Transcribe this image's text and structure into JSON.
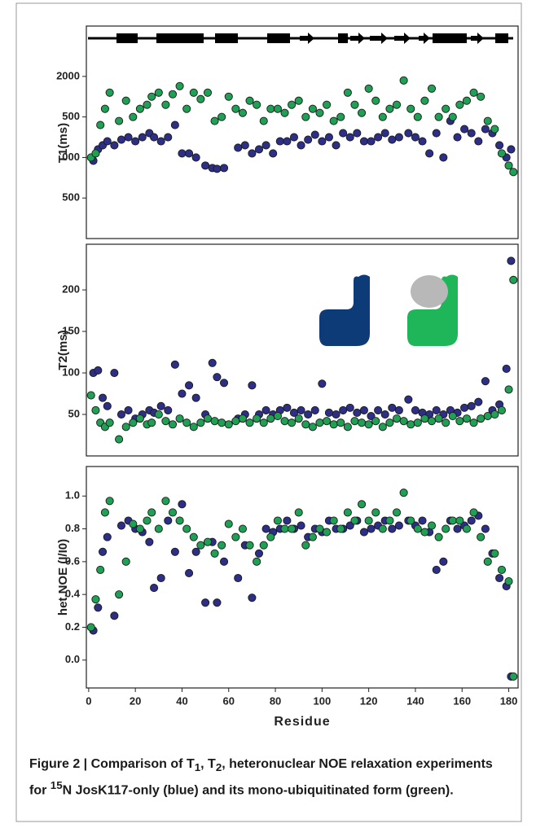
{
  "chart_data": [
    {
      "type": "scatter",
      "ylabel": "T1(ms)",
      "xlim": [
        -1,
        184
      ],
      "ylim": [
        0,
        2360
      ],
      "yticks": [
        2000,
        {
          "value": 1500,
          "label": "500"
        },
        {
          "value": 1000,
          "label": "000"
        },
        500
      ],
      "series": [
        {
          "color": "#2d2f86",
          "x": [
            2,
            4,
            6,
            8,
            11,
            14,
            17,
            20,
            23,
            26,
            28,
            31,
            34,
            37,
            40,
            43,
            46,
            50,
            53,
            55,
            58,
            64,
            67,
            70,
            73,
            76,
            79,
            82,
            85,
            88,
            91,
            94,
            97,
            100,
            103,
            106,
            109,
            112,
            115,
            118,
            121,
            124,
            127,
            130,
            133,
            137,
            140,
            143,
            146,
            149,
            152,
            155,
            158,
            161,
            164,
            167,
            170,
            173,
            176,
            179,
            181
          ],
          "values": [
            960,
            1100,
            1150,
            1200,
            1150,
            1220,
            1250,
            1200,
            1250,
            1300,
            1250,
            1200,
            1250,
            1400,
            1050,
            1050,
            1000,
            900,
            870,
            860,
            870,
            1120,
            1150,
            1050,
            1100,
            1150,
            1050,
            1200,
            1200,
            1250,
            1150,
            1220,
            1280,
            1200,
            1250,
            1150,
            1300,
            1250,
            1300,
            1200,
            1200,
            1250,
            1300,
            1220,
            1250,
            1300,
            1250,
            1200,
            1050,
            1300,
            1000,
            1450,
            1250,
            1350,
            1300,
            1200,
            1350,
            1300,
            1150,
            1000,
            1100
          ]
        },
        {
          "color": "#1fa055",
          "x": [
            1,
            3,
            5,
            7,
            9,
            13,
            16,
            19,
            22,
            25,
            27,
            30,
            33,
            36,
            39,
            42,
            45,
            48,
            51,
            54,
            57,
            60,
            63,
            66,
            69,
            72,
            75,
            78,
            81,
            84,
            87,
            90,
            93,
            96,
            99,
            102,
            105,
            108,
            111,
            114,
            117,
            120,
            123,
            126,
            129,
            132,
            135,
            138,
            141,
            144,
            147,
            150,
            153,
            156,
            159,
            162,
            165,
            168,
            171,
            174,
            177,
            180,
            182
          ],
          "values": [
            1000,
            1050,
            1400,
            1600,
            1800,
            1450,
            1700,
            1500,
            1600,
            1650,
            1750,
            1800,
            1650,
            1780,
            1880,
            1600,
            1800,
            1720,
            1800,
            1450,
            1500,
            1750,
            1600,
            1550,
            1700,
            1650,
            1450,
            1600,
            1600,
            1550,
            1650,
            1700,
            1500,
            1600,
            1550,
            1650,
            1450,
            1500,
            1800,
            1650,
            1550,
            1850,
            1700,
            1500,
            1600,
            1650,
            1950,
            1600,
            1500,
            1700,
            1850,
            1500,
            1600,
            1500,
            1650,
            1700,
            1800,
            1750,
            1450,
            1350,
            1050,
            900,
            820
          ]
        }
      ]
    },
    {
      "type": "scatter",
      "ylabel": "T2(ms)",
      "xlim": [
        -1,
        184
      ],
      "ylim": [
        0,
        255
      ],
      "yticks": [
        50,
        100,
        150,
        200
      ],
      "series": [
        {
          "color": "#2d2f86",
          "x": [
            2,
            4,
            6,
            8,
            11,
            14,
            17,
            20,
            23,
            26,
            28,
            31,
            34,
            37,
            40,
            43,
            46,
            50,
            53,
            55,
            58,
            64,
            67,
            70,
            73,
            76,
            79,
            82,
            85,
            88,
            91,
            94,
            97,
            100,
            103,
            106,
            109,
            112,
            115,
            118,
            121,
            124,
            127,
            130,
            133,
            137,
            140,
            143,
            146,
            149,
            152,
            155,
            158,
            161,
            164,
            167,
            170,
            173,
            176,
            179,
            181
          ],
          "values": [
            100,
            103,
            70,
            60,
            100,
            50,
            55,
            45,
            50,
            55,
            52,
            60,
            55,
            110,
            75,
            85,
            70,
            50,
            112,
            95,
            88,
            45,
            50,
            85,
            50,
            55,
            50,
            55,
            58,
            52,
            55,
            50,
            55,
            87,
            52,
            50,
            55,
            58,
            52,
            55,
            48,
            55,
            50,
            58,
            55,
            68,
            55,
            52,
            50,
            55,
            50,
            55,
            52,
            58,
            60,
            65,
            90,
            55,
            62,
            105,
            235
          ]
        },
        {
          "color": "#1fa055",
          "x": [
            1,
            3,
            5,
            7,
            9,
            13,
            16,
            19,
            22,
            25,
            27,
            30,
            33,
            36,
            39,
            42,
            45,
            48,
            51,
            54,
            57,
            60,
            63,
            66,
            69,
            72,
            75,
            78,
            81,
            84,
            87,
            90,
            93,
            96,
            99,
            102,
            105,
            108,
            111,
            114,
            117,
            120,
            123,
            126,
            129,
            132,
            135,
            138,
            141,
            144,
            147,
            150,
            153,
            156,
            159,
            162,
            165,
            168,
            171,
            174,
            177,
            180,
            182
          ],
          "values": [
            73,
            55,
            40,
            35,
            40,
            20,
            35,
            40,
            45,
            38,
            40,
            50,
            42,
            38,
            45,
            40,
            35,
            40,
            45,
            42,
            40,
            38,
            42,
            45,
            40,
            45,
            40,
            45,
            48,
            42,
            40,
            45,
            38,
            35,
            40,
            42,
            38,
            40,
            35,
            42,
            40,
            38,
            42,
            35,
            40,
            45,
            42,
            38,
            40,
            45,
            42,
            45,
            40,
            48,
            42,
            45,
            40,
            45,
            48,
            50,
            55,
            80,
            212
          ]
        }
      ]
    },
    {
      "type": "scatter",
      "ylabel": "het.NOE (I/I0)",
      "xlabel": "Residue",
      "xlim": [
        -1,
        184
      ],
      "ylim": [
        -0.17,
        1.18
      ],
      "xticks": [
        0,
        20,
        40,
        60,
        80,
        100,
        120,
        140,
        160,
        180
      ],
      "yticks": [
        {
          "value": 1,
          "label": "1.0"
        },
        0.8,
        0.6,
        0.4,
        0.2,
        {
          "value": 0,
          "label": "0.0"
        }
      ],
      "series": [
        {
          "color": "#2d2f86",
          "x": [
            2,
            4,
            6,
            8,
            11,
            14,
            17,
            20,
            23,
            26,
            28,
            31,
            34,
            37,
            40,
            43,
            46,
            50,
            53,
            55,
            58,
            64,
            67,
            70,
            73,
            76,
            79,
            82,
            85,
            88,
            91,
            94,
            97,
            100,
            103,
            106,
            109,
            112,
            115,
            118,
            121,
            124,
            127,
            130,
            133,
            137,
            140,
            143,
            146,
            149,
            152,
            155,
            158,
            161,
            164,
            167,
            170,
            173,
            176,
            179,
            181
          ],
          "values": [
            0.18,
            0.32,
            0.66,
            0.75,
            0.27,
            0.82,
            0.85,
            0.8,
            0.78,
            0.72,
            0.44,
            0.5,
            0.85,
            0.66,
            0.95,
            0.53,
            0.66,
            0.35,
            0.72,
            0.35,
            0.6,
            0.5,
            0.7,
            0.38,
            0.65,
            0.8,
            0.78,
            0.8,
            0.85,
            0.8,
            0.82,
            0.75,
            0.8,
            0.78,
            0.85,
            0.8,
            0.8,
            0.82,
            0.85,
            0.78,
            0.8,
            0.82,
            0.85,
            0.8,
            0.82,
            0.85,
            0.82,
            0.85,
            0.78,
            0.55,
            0.6,
            0.85,
            0.8,
            0.82,
            0.85,
            0.88,
            0.8,
            0.65,
            0.5,
            0.45,
            -0.1
          ]
        },
        {
          "color": "#1fa055",
          "x": [
            1,
            3,
            5,
            7,
            9,
            13,
            16,
            19,
            22,
            25,
            27,
            30,
            33,
            36,
            39,
            42,
            45,
            48,
            51,
            54,
            57,
            60,
            63,
            66,
            69,
            72,
            75,
            78,
            81,
            84,
            87,
            90,
            93,
            96,
            99,
            102,
            105,
            108,
            111,
            114,
            117,
            120,
            123,
            126,
            129,
            132,
            135,
            138,
            141,
            144,
            147,
            150,
            153,
            156,
            159,
            162,
            165,
            168,
            171,
            174,
            177,
            180,
            182
          ],
          "values": [
            0.2,
            0.37,
            0.55,
            0.9,
            0.97,
            0.4,
            0.6,
            0.83,
            0.8,
            0.85,
            0.9,
            0.8,
            0.97,
            0.9,
            0.85,
            0.8,
            0.75,
            0.7,
            0.72,
            0.65,
            0.7,
            0.83,
            0.75,
            0.8,
            0.7,
            0.6,
            0.7,
            0.75,
            0.85,
            0.8,
            0.8,
            0.9,
            0.7,
            0.75,
            0.8,
            0.78,
            0.85,
            0.8,
            0.9,
            0.85,
            0.95,
            0.85,
            0.9,
            0.8,
            0.85,
            0.9,
            1.02,
            0.85,
            0.8,
            0.78,
            0.82,
            0.75,
            0.8,
            0.85,
            0.85,
            0.8,
            0.9,
            0.75,
            0.6,
            0.65,
            0.55,
            0.48,
            -0.1
          ]
        }
      ]
    }
  ],
  "caption": {
    "label": "Figure 2 | Comparison of T",
    "sub1": "1",
    "mid1": ", T",
    "sub2": "2",
    "mid2": ", heteronuclear NOE relaxation experiments for ",
    "sup": "15",
    "rest": "N JosK117-only (blue) and its mono-ubiquitinated form (green)."
  }
}
